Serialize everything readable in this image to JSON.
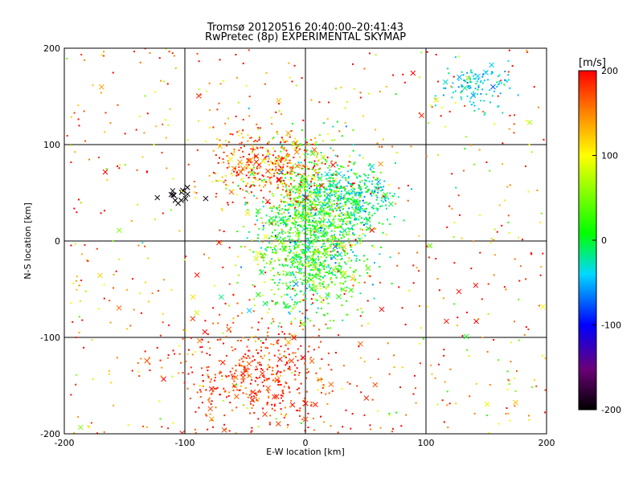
{
  "chart_data": {
    "type": "scatter",
    "title": "Tromsø 20120516 20:40:00–20:41:43",
    "subtitle": "RwPretec (8p) EXPERIMENTAL SKYMAP",
    "xlabel": "E-W location [km]",
    "ylabel": "N-S location [km]",
    "xlim": [
      -200,
      200
    ],
    "ylim": [
      -200,
      200
    ],
    "xticks": [
      "-200",
      "-100",
      "0",
      "100",
      "200"
    ],
    "yticks": [
      "-200",
      "-100",
      "0",
      "100",
      "200"
    ],
    "grid": true,
    "colorbar": {
      "label": "[m/s]",
      "range": [
        -200,
        200
      ],
      "ticks": [
        "-200",
        "-100",
        "0",
        "100",
        "200"
      ],
      "colormap": "rainbow: black-purple-blue-cyan-green-yellow-red"
    },
    "markers": {
      "detections": "dot",
      "estimates": "cross"
    },
    "clusters": [
      {
        "region": "central",
        "x_center": 5,
        "y_center": 10,
        "x_spread": 22,
        "y_spread": 40,
        "velocity_mean": 20,
        "velocity_spread": 40
      },
      {
        "region": "north-east cyan patch",
        "x_center": 140,
        "y_center": 160,
        "x_spread": 15,
        "y_spread": 12,
        "velocity_mean": -40,
        "velocity_spread": 15
      },
      {
        "region": "north cyan blob",
        "x_center": 40,
        "y_center": 45,
        "x_spread": 18,
        "y_spread": 15,
        "velocity_mean": -20,
        "velocity_spread": 25
      },
      {
        "region": "south red patch",
        "x_center": -40,
        "y_center": -140,
        "x_spread": 35,
        "y_spread": 30,
        "velocity_mean": 180,
        "velocity_spread": 20
      },
      {
        "region": "upper red band",
        "x_center": -30,
        "y_center": 80,
        "x_spread": 25,
        "y_spread": 20,
        "velocity_mean": 160,
        "velocity_spread": 40
      },
      {
        "region": "west black crosses",
        "x_center": -100,
        "y_center": 50,
        "x_spread": 10,
        "y_spread": 5,
        "velocity_mean": -200,
        "velocity_spread": 5
      },
      {
        "region": "scattered",
        "x_center": 0,
        "y_center": 0,
        "x_spread": 100,
        "y_spread": 100,
        "velocity_mean": 150,
        "velocity_spread": 60
      }
    ]
  }
}
